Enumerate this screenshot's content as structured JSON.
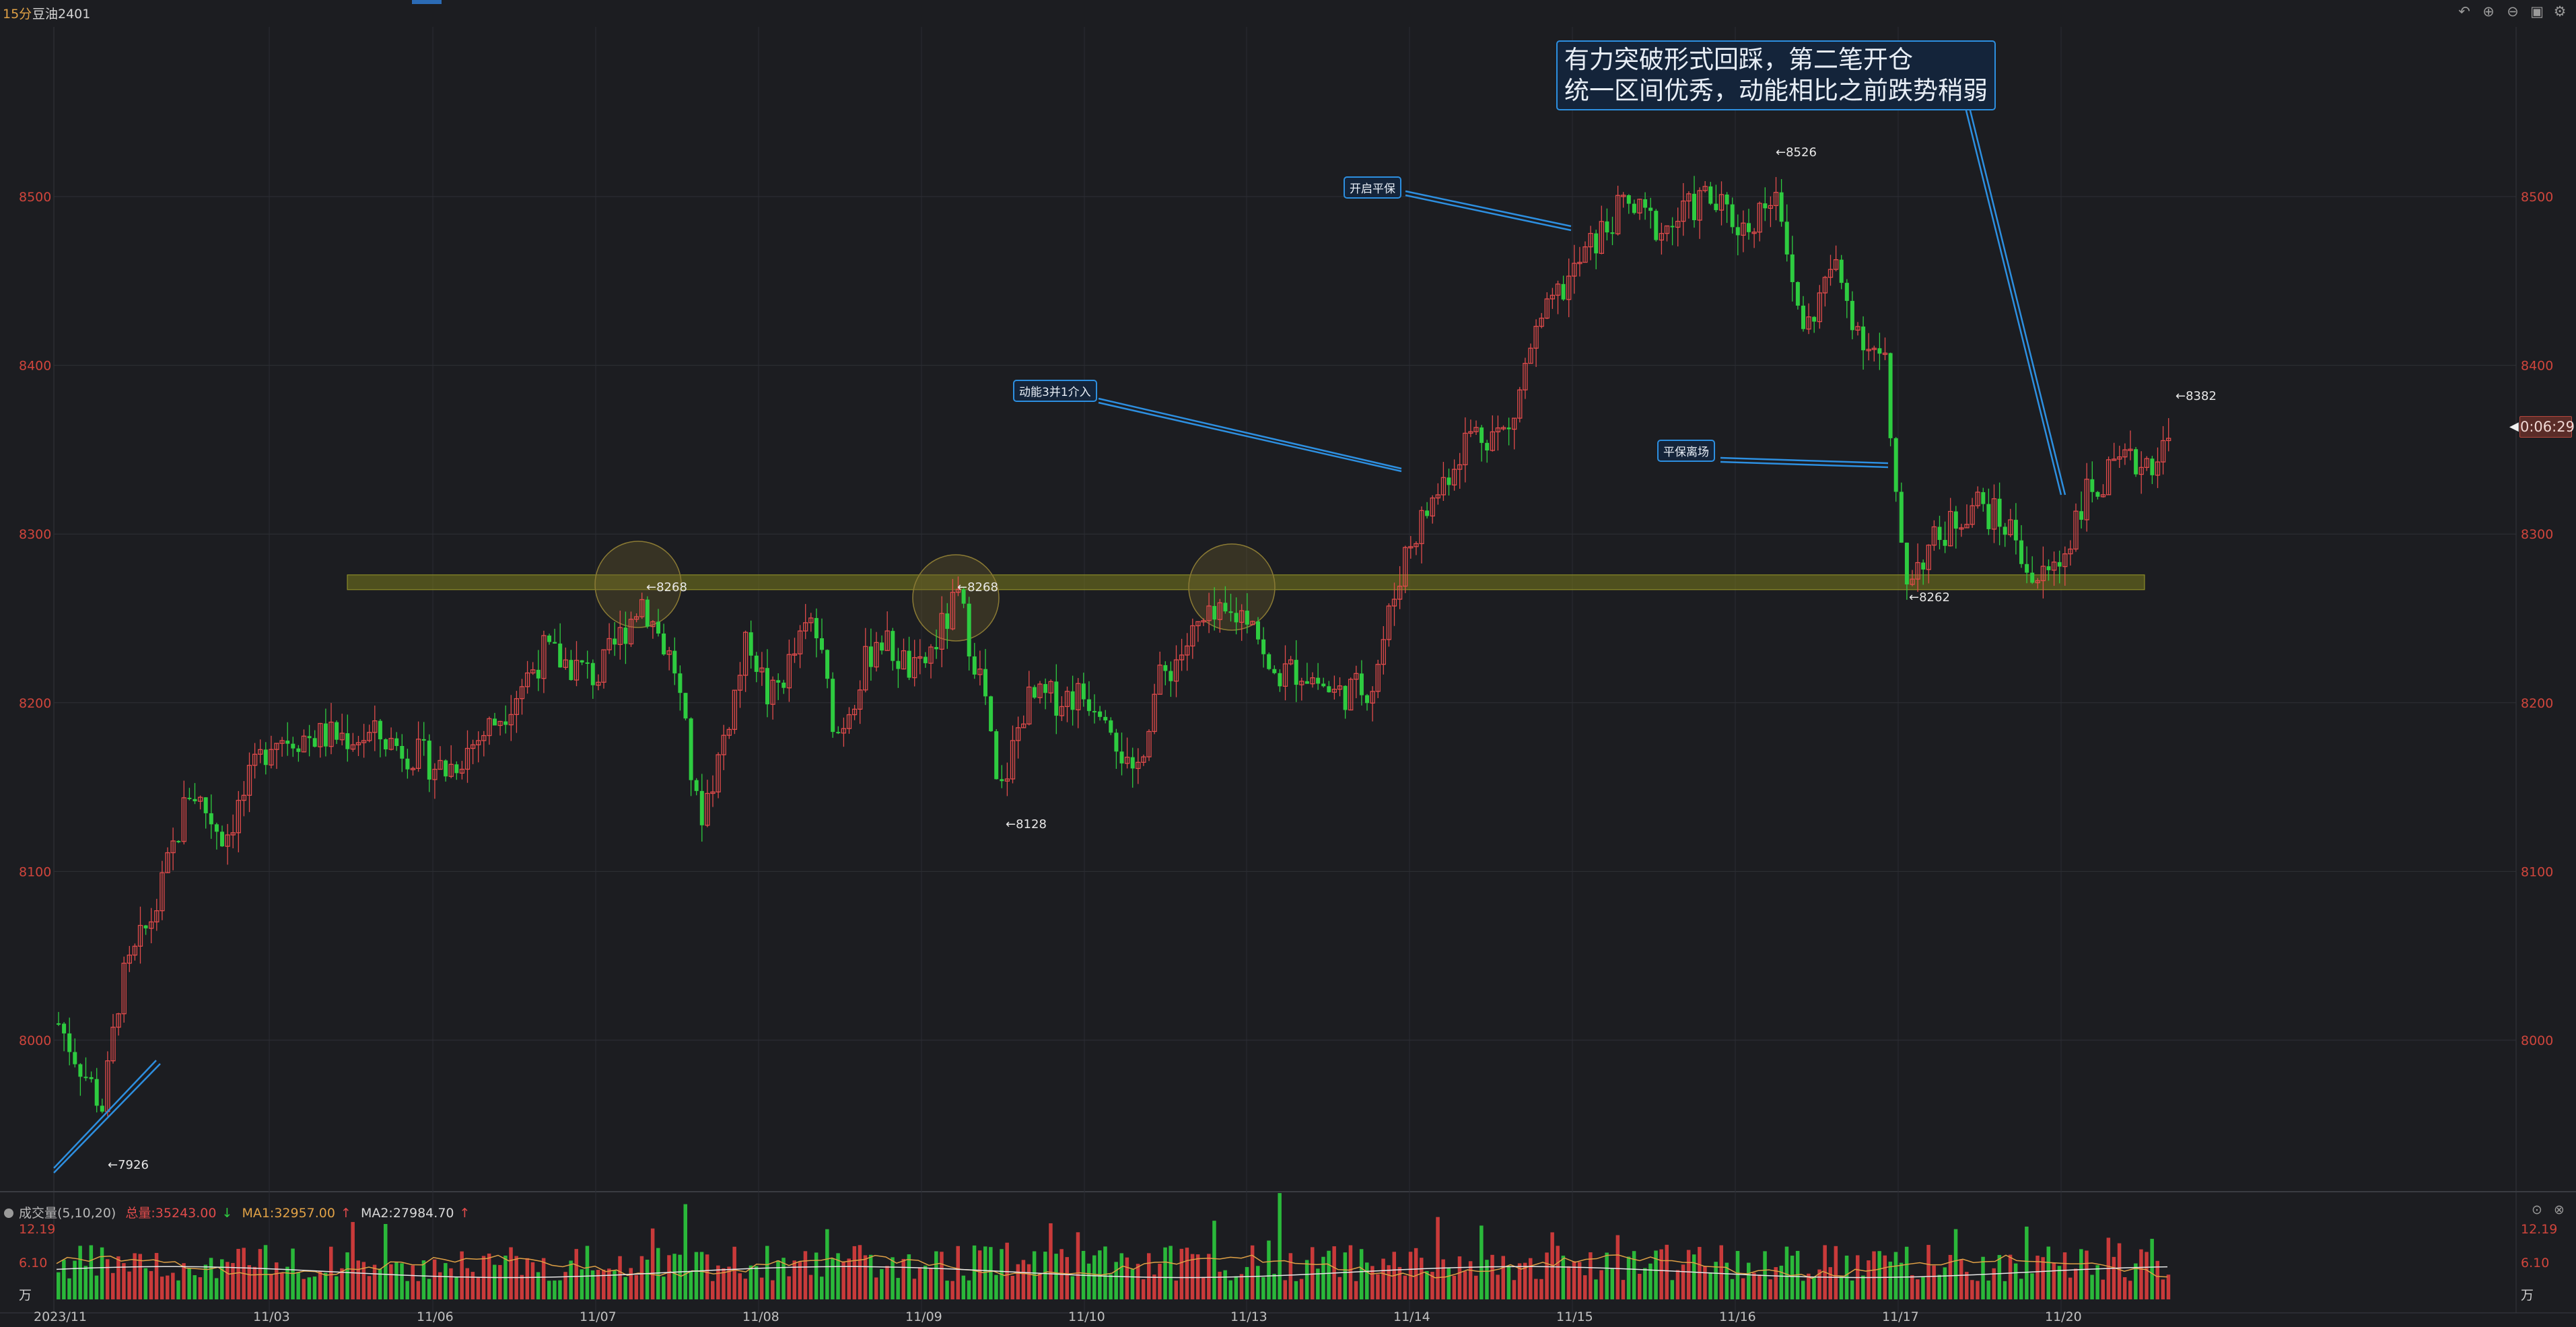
{
  "header": {
    "period": "15分",
    "symbol": "豆油2401",
    "tools": [
      "undo-icon",
      "zoom-in-icon",
      "zoom-out-icon",
      "layout-icon",
      "settings-icon"
    ]
  },
  "price_axis": {
    "ticks": [
      "8500",
      "8400",
      "8300",
      "8200",
      "8100",
      "8000"
    ],
    "countdown": "0:06:29"
  },
  "date_axis": {
    "labels": [
      "2023/11",
      "11/03",
      "11/06",
      "11/07",
      "11/08",
      "11/09",
      "11/10",
      "11/13",
      "11/14",
      "11/15",
      "11/16",
      "11/17",
      "11/20"
    ]
  },
  "price_marks": {
    "low_7926": "←7926",
    "high_8268_a": "←8268",
    "high_8268_b": "←8268",
    "low_8128": "←8128",
    "high_8526": "←8526",
    "low_8262": "←8262",
    "high_8382": "←8382"
  },
  "annotations": {
    "momentum": "动能3并1介入",
    "open_hedge": "开启平保",
    "hedge_exit": "平保离场",
    "big_line1": "有力突破形式回踩，第二笔开仓",
    "big_line2": "统一区间优秀，动能相比之前跌势稍弱"
  },
  "volume_panel": {
    "name": "成交量(5,10,20)",
    "total": "总量:35243.00",
    "ma1": "MA1:32957.00",
    "ma2": "MA2:27984.70",
    "ticks_left": [
      "12.19",
      "6.10",
      "万"
    ],
    "ticks_right": [
      "12.19",
      "6.10",
      "万"
    ]
  },
  "colors": {
    "up": "#e04b4b",
    "down": "#2ecc40",
    "support_band": "#7a7a1e",
    "annotation": "#2d8fe0"
  },
  "chart_data": {
    "type": "candlestick",
    "y_range": [
      7900,
      8580
    ],
    "key_levels": {
      "support_band": [
        8265,
        8275
      ]
    },
    "price_points": [
      {
        "label": "start",
        "value": 8000
      },
      {
        "label": "low",
        "value": 7926
      },
      {
        "label": "11/03",
        "value": 8170
      },
      {
        "label": "11/07 high",
        "value": 8268
      },
      {
        "label": "11/09 high",
        "value": 8268
      },
      {
        "label": "11/09 low",
        "value": 8128
      },
      {
        "label": "11/13 high",
        "value": 8285
      },
      {
        "label": "11/14 open",
        "value": 8290
      },
      {
        "label": "11/16 high",
        "value": 8526
      },
      {
        "label": "11/17 low",
        "value": 8262
      },
      {
        "label": "11/20 close",
        "value": 8350
      },
      {
        "label": "high",
        "value": 8382
      }
    ],
    "volume_axis": {
      "max": 12.19,
      "mid": 6.1,
      "unit": "万"
    }
  }
}
